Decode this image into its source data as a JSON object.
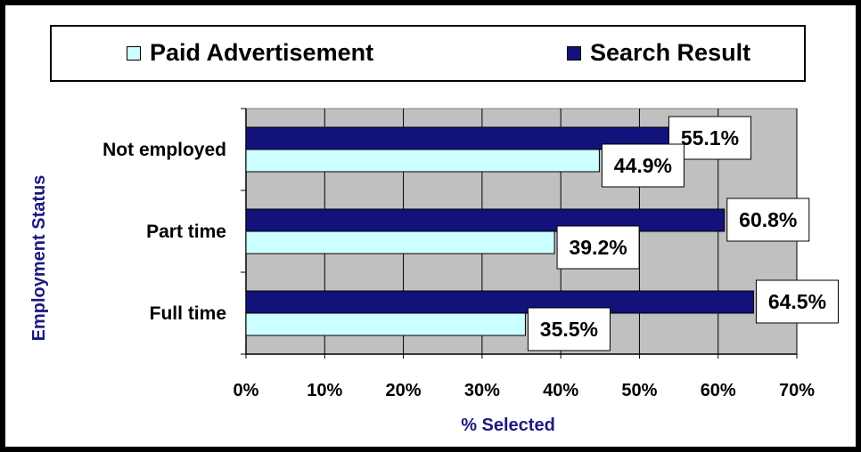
{
  "chart_data": {
    "type": "bar",
    "orientation": "horizontal",
    "categories": [
      "Not employed",
      "Part time",
      "Full time"
    ],
    "series": [
      {
        "name": "Search Result",
        "values": [
          55.1,
          60.8,
          64.5
        ],
        "labels": [
          "55.1%",
          "60.8%",
          "64.5%"
        ],
        "color": "#12127a"
      },
      {
        "name": "Paid Advertisement",
        "values": [
          44.9,
          39.2,
          35.5
        ],
        "labels": [
          "44.9%",
          "39.2%",
          "35.5%"
        ],
        "color": "#ccffff"
      }
    ],
    "xlabel": "% Selected",
    "ylabel": "Employment Status",
    "xlim": [
      0,
      70
    ],
    "x_ticks": [
      "0%",
      "10%",
      "20%",
      "30%",
      "40%",
      "50%",
      "60%",
      "70%"
    ],
    "grid": true,
    "plot_background": "#c0c0c0",
    "legend_position": "top",
    "legend_items": [
      "Paid Advertisement",
      "Search Result"
    ]
  }
}
